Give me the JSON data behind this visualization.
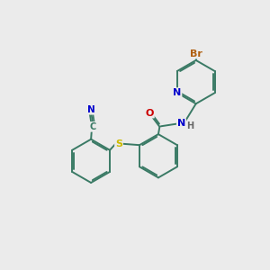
{
  "background_color": "#ebebeb",
  "bond_color": "#3a7a65",
  "bond_width": 1.4,
  "dbo": 0.055,
  "atom_colors": {
    "Br": "#b06010",
    "N": "#0000cc",
    "O": "#cc0000",
    "S": "#ccbb00",
    "C": "#3a7a65",
    "H": "#666666"
  },
  "figsize": [
    3.0,
    3.0
  ],
  "dpi": 100,
  "xlim": [
    0,
    10
  ],
  "ylim": [
    0,
    10
  ]
}
